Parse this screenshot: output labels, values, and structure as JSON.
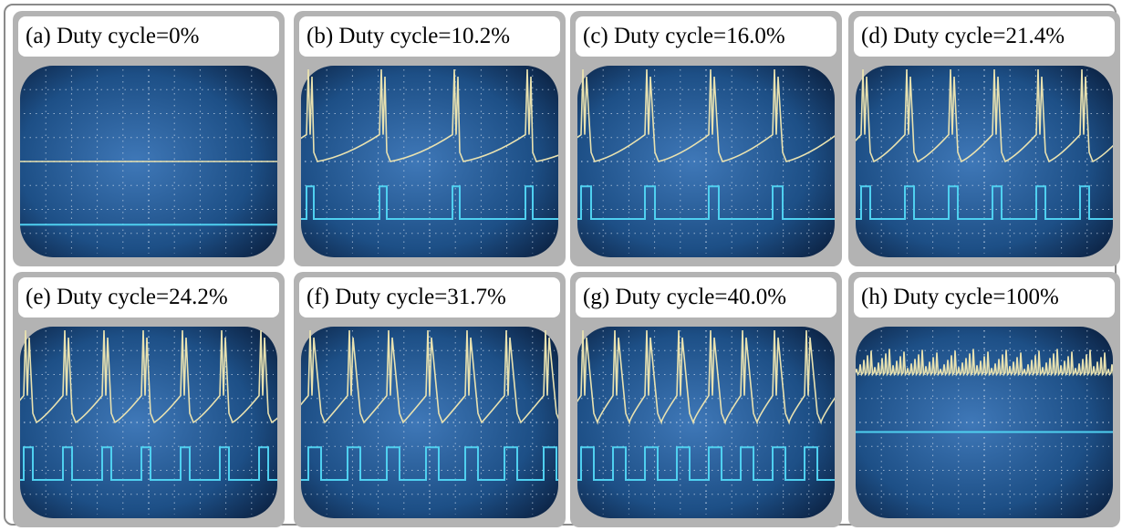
{
  "panels": [
    {
      "label": "(a) Duty cycle=0%"
    },
    {
      "label": "(b) Duty cycle=10.2%"
    },
    {
      "label": "(c) Duty cycle=16.0%"
    },
    {
      "label": "(d) Duty cycle=21.4%"
    },
    {
      "label": "(e) Duty cycle=24.2%"
    },
    {
      "label": "(f) Duty cycle=31.7%"
    },
    {
      "label": "(g) Duty cycle=40.0%"
    },
    {
      "label": "(h) Duty cycle=100%"
    }
  ]
}
